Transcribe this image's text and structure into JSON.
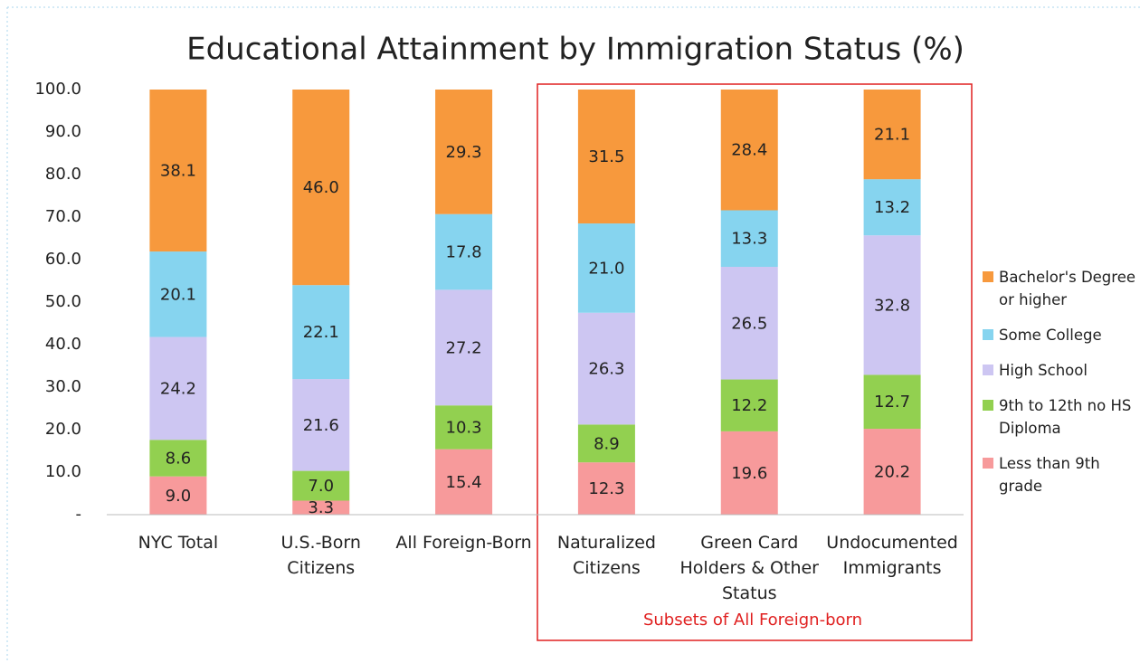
{
  "chart_data": {
    "type": "stacked_bar",
    "title": "Educational Attainment by Immigration Status (%)",
    "categories": [
      "NYC Total",
      "U.S.-Born Citizens",
      "All Foreign-Born",
      "Naturalized Citizens",
      "Green Card Holders & Other Status",
      "Undocumented Immigrants"
    ],
    "series": [
      {
        "name": "Less than 9th grade",
        "color": "#f79a9b",
        "values": [
          9.0,
          3.3,
          15.4,
          12.3,
          19.6,
          20.2
        ],
        "value_labels": [
          "9.0",
          "3.3",
          "15.4",
          "12.3",
          "19.6",
          "20.2"
        ]
      },
      {
        "name": "9th to 12th no HS Diploma",
        "color": "#92d050",
        "values": [
          8.6,
          7.0,
          10.3,
          8.9,
          12.2,
          12.7
        ],
        "value_labels": [
          "8.6",
          "7.0",
          "10.3",
          "8.9",
          "12.2",
          "12.7"
        ]
      },
      {
        "name": "High School",
        "color": "#cdc6f2",
        "values": [
          24.2,
          21.6,
          27.2,
          26.3,
          26.5,
          32.8
        ],
        "value_labels": [
          "24.2",
          "21.6",
          "27.2",
          "26.3",
          "26.5",
          "32.8"
        ]
      },
      {
        "name": "Some College",
        "color": "#86d4ef",
        "values": [
          20.1,
          22.1,
          17.8,
          21.0,
          13.3,
          13.2
        ],
        "value_labels": [
          "20.1",
          "22.1",
          "17.8",
          "21.0",
          "13.3",
          "13.2"
        ]
      },
      {
        "name": "Bachelor's Degree or higher",
        "color": "#f7993d",
        "values": [
          38.1,
          46.0,
          29.3,
          31.5,
          28.4,
          21.1
        ],
        "value_labels": [
          "38.1",
          "46.0",
          "29.3",
          "31.5",
          "28.4",
          "21.1"
        ]
      }
    ],
    "ylim": [
      0,
      100
    ],
    "yticks": [
      {
        "value": 0,
        "label": "-"
      },
      {
        "value": 10,
        "label": "10.0"
      },
      {
        "value": 20,
        "label": "20.0"
      },
      {
        "value": 30,
        "label": "30.0"
      },
      {
        "value": 40,
        "label": "40.0"
      },
      {
        "value": 50,
        "label": "50.0"
      },
      {
        "value": 60,
        "label": "60.0"
      },
      {
        "value": 70,
        "label": "70.0"
      },
      {
        "value": 80,
        "label": "80.0"
      },
      {
        "value": 90,
        "label": "90.0"
      },
      {
        "value": 100,
        "label": "100.0"
      }
    ],
    "grid": false,
    "legend": "right",
    "annotation": "Subsets of All Foreign-born"
  }
}
